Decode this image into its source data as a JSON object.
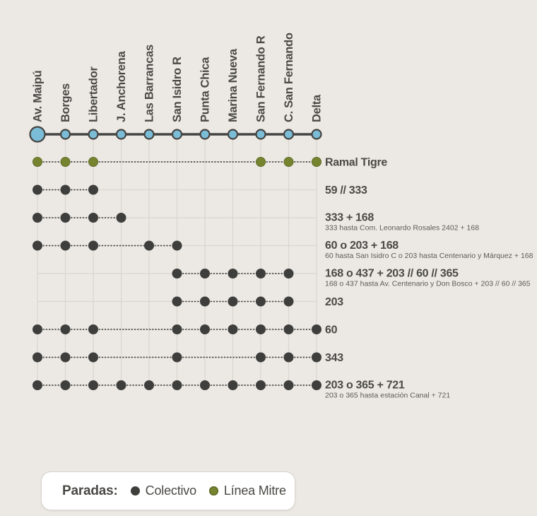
{
  "colors": {
    "background": "#ECE9E4",
    "dark_stop": "#3E3E3C",
    "blue_station": "#7BBCD6",
    "olive_stop": "#76842F",
    "olive_edge": "#5E6B26",
    "grid_line": "#D9D5CF",
    "main_line": "#454442",
    "text": "#4A4945",
    "subtext": "#5E5A54",
    "legend_background": "#FFFFFF"
  },
  "stations": [
    {
      "name": "Av. Maipú",
      "major": true
    },
    {
      "name": "Borges",
      "major": false
    },
    {
      "name": "Libertador",
      "major": false
    },
    {
      "name": "J. Anchorena",
      "major": false
    },
    {
      "name": "Las Barrancas",
      "major": false
    },
    {
      "name": "San Isidro R",
      "major": false
    },
    {
      "name": "Punta Chica",
      "major": false
    },
    {
      "name": "Marina Nueva",
      "major": false
    },
    {
      "name": "San Fernando R",
      "major": false
    },
    {
      "name": "C. San Fernando",
      "major": false
    },
    {
      "name": "Delta",
      "major": false
    }
  ],
  "routes": [
    {
      "label": "Ramal Tigre",
      "sublabel": "",
      "type": "mitre",
      "stops": [
        0,
        1,
        2,
        8,
        9,
        10
      ]
    },
    {
      "label": "59 // 333",
      "sublabel": "",
      "type": "colectivo",
      "stops": [
        0,
        1,
        2
      ]
    },
    {
      "label": "333 + 168",
      "sublabel": "333 hasta Com. Leonardo Rosales 2402 + 168",
      "type": "colectivo",
      "stops": [
        0,
        1,
        2,
        3
      ]
    },
    {
      "label": "60 o 203 + 168",
      "sublabel": "60 hasta San Isidro C o 203 hasta Centenario y Márquez + 168",
      "type": "colectivo",
      "stops": [
        0,
        1,
        2,
        4,
        5
      ]
    },
    {
      "label": "168 o 437 + 203 // 60 // 365",
      "sublabel": "168 o 437 hasta Av. Centenario y Don Bosco + 203 // 60 // 365",
      "type": "colectivo",
      "stops": [
        5,
        6,
        7,
        8,
        9
      ]
    },
    {
      "label": "203",
      "sublabel": "",
      "type": "colectivo",
      "stops": [
        5,
        6,
        7,
        8,
        9
      ]
    },
    {
      "label": "60",
      "sublabel": "",
      "type": "colectivo",
      "stops": [
        0,
        1,
        2,
        5,
        6,
        7,
        8,
        9,
        10
      ]
    },
    {
      "label": "343",
      "sublabel": "",
      "type": "colectivo",
      "stops": [
        0,
        1,
        2,
        5,
        8,
        9,
        10
      ]
    },
    {
      "label": "203 o 365 + 721",
      "sublabel": "203 o 365 hasta estación Canal + 721",
      "type": "colectivo",
      "stops": [
        0,
        1,
        2,
        3,
        4,
        5,
        6,
        7,
        8,
        9,
        10
      ]
    }
  ],
  "legend": {
    "title": "Paradas:",
    "items": [
      {
        "label": "Colectivo",
        "type": "colectivo"
      },
      {
        "label": "Línea Mitre",
        "type": "mitre"
      }
    ]
  }
}
